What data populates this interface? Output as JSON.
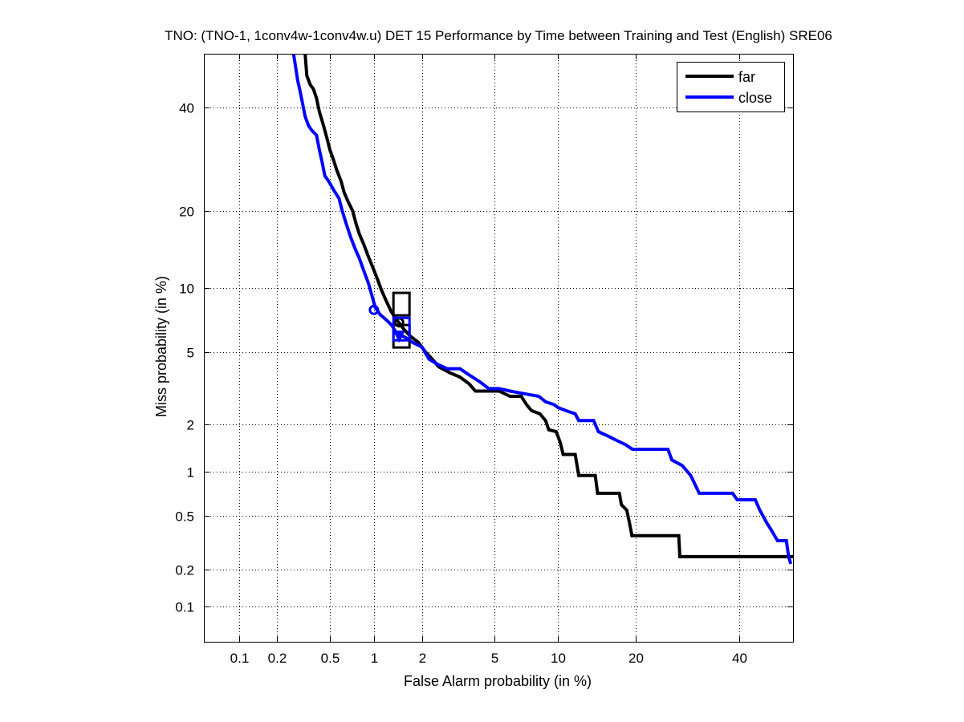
{
  "chart_data": {
    "type": "line",
    "title": "TNO: (TNO-1, 1conv4w-1conv4w.u) DET 15 Performance by Time between Training and Test (English) SRE06",
    "xlabel": "False Alarm probability (in %)",
    "ylabel": "Miss probability (in %)",
    "xscale": "probit",
    "yscale": "probit",
    "xlim": [
      0.05,
      52
    ],
    "ylim": [
      0.05,
      52
    ],
    "grid": true,
    "legend_position": "top-right",
    "x_ticks": [
      0.1,
      0.2,
      0.5,
      1,
      2,
      5,
      10,
      20,
      40
    ],
    "x_tick_labels": [
      "0.1",
      "0.2",
      "0.5",
      "1",
      "2",
      "5",
      "10",
      "20",
      "40"
    ],
    "y_ticks": [
      0.1,
      0.2,
      0.5,
      1,
      2,
      5,
      10,
      20,
      40
    ],
    "y_tick_labels": [
      "0.1",
      "0.2",
      "0.5",
      "1",
      "2",
      "5",
      "10",
      "20",
      "40"
    ],
    "series": [
      {
        "name": "far",
        "color": "#000000",
        "points": [
          [
            0.33,
            52
          ],
          [
            0.34,
            47
          ],
          [
            0.36,
            45
          ],
          [
            0.38,
            44
          ],
          [
            0.4,
            42
          ],
          [
            0.42,
            39
          ],
          [
            0.45,
            36
          ],
          [
            0.48,
            33
          ],
          [
            0.5,
            31
          ],
          [
            0.53,
            29
          ],
          [
            0.56,
            27
          ],
          [
            0.6,
            25
          ],
          [
            0.63,
            23
          ],
          [
            0.67,
            21.5
          ],
          [
            0.72,
            20
          ],
          [
            0.76,
            18
          ],
          [
            0.8,
            16.5
          ],
          [
            0.86,
            15
          ],
          [
            0.92,
            13.5
          ],
          [
            0.98,
            12.3
          ],
          [
            1.05,
            11
          ],
          [
            1.12,
            9.8
          ],
          [
            1.2,
            8.8
          ],
          [
            1.3,
            7.8
          ],
          [
            1.4,
            7.2
          ],
          [
            1.55,
            6.5
          ],
          [
            1.7,
            6.0
          ],
          [
            1.9,
            5.6
          ],
          [
            2.1,
            5.0
          ],
          [
            2.3,
            4.6
          ],
          [
            2.5,
            4.2
          ],
          [
            2.9,
            3.9
          ],
          [
            3.3,
            3.7
          ],
          [
            3.7,
            3.4
          ],
          [
            4.0,
            3.1
          ],
          [
            4.8,
            3.1
          ],
          [
            5.3,
            3.1
          ],
          [
            6.0,
            2.9
          ],
          [
            6.8,
            2.9
          ],
          [
            7.2,
            2.6
          ],
          [
            7.6,
            2.4
          ],
          [
            8.3,
            2.3
          ],
          [
            8.8,
            2.1
          ],
          [
            9.1,
            1.85
          ],
          [
            9.8,
            1.8
          ],
          [
            10.2,
            1.55
          ],
          [
            10.5,
            1.3
          ],
          [
            11.8,
            1.3
          ],
          [
            12.2,
            0.95
          ],
          [
            14.2,
            0.95
          ],
          [
            14.5,
            0.72
          ],
          [
            17.5,
            0.72
          ],
          [
            17.8,
            0.6
          ],
          [
            18.6,
            0.55
          ],
          [
            19.0,
            0.45
          ],
          [
            19.4,
            0.36
          ],
          [
            27.5,
            0.36
          ],
          [
            27.7,
            0.25
          ],
          [
            52,
            0.25
          ]
        ],
        "markers": [
          {
            "type": "circle",
            "fa": 1.45,
            "miss": 7.0
          },
          {
            "type": "square",
            "fa": 1.5,
            "miss": 8.5
          },
          {
            "type": "square",
            "fa": 1.5,
            "miss": 6.0
          }
        ]
      },
      {
        "name": "close",
        "color": "#0000ff",
        "points": [
          [
            0.27,
            52
          ],
          [
            0.28,
            49
          ],
          [
            0.29,
            46
          ],
          [
            0.3,
            44
          ],
          [
            0.31,
            42
          ],
          [
            0.32,
            40
          ],
          [
            0.33,
            38
          ],
          [
            0.35,
            36
          ],
          [
            0.37,
            35
          ],
          [
            0.4,
            34
          ],
          [
            0.42,
            31
          ],
          [
            0.44,
            28.5
          ],
          [
            0.46,
            26
          ],
          [
            0.49,
            25
          ],
          [
            0.53,
            23.5
          ],
          [
            0.58,
            22
          ],
          [
            0.61,
            20
          ],
          [
            0.65,
            18
          ],
          [
            0.7,
            16
          ],
          [
            0.75,
            14.5
          ],
          [
            0.8,
            13.3
          ],
          [
            0.85,
            12
          ],
          [
            0.92,
            10.5
          ],
          [
            0.97,
            9.3
          ],
          [
            1.02,
            8.2
          ],
          [
            1.1,
            7.6
          ],
          [
            1.2,
            7.2
          ],
          [
            1.3,
            6.8
          ],
          [
            1.4,
            6.2
          ],
          [
            1.6,
            5.9
          ],
          [
            1.75,
            5.6
          ],
          [
            2.0,
            5.3
          ],
          [
            2.2,
            4.6
          ],
          [
            2.5,
            4.3
          ],
          [
            2.8,
            4.1
          ],
          [
            3.3,
            4.1
          ],
          [
            3.7,
            3.8
          ],
          [
            4.2,
            3.5
          ],
          [
            4.7,
            3.2
          ],
          [
            5.3,
            3.2
          ],
          [
            6.0,
            3.1
          ],
          [
            7.0,
            3.0
          ],
          [
            8.2,
            2.9
          ],
          [
            8.8,
            2.7
          ],
          [
            9.6,
            2.6
          ],
          [
            10.0,
            2.5
          ],
          [
            10.8,
            2.4
          ],
          [
            11.8,
            2.3
          ],
          [
            12.2,
            2.1
          ],
          [
            14.0,
            2.1
          ],
          [
            14.6,
            1.8
          ],
          [
            15.8,
            1.7
          ],
          [
            17.0,
            1.6
          ],
          [
            18.4,
            1.5
          ],
          [
            19.5,
            1.4
          ],
          [
            25.5,
            1.4
          ],
          [
            26.2,
            1.2
          ],
          [
            28.2,
            1.1
          ],
          [
            29.8,
            0.95
          ],
          [
            30.5,
            0.85
          ],
          [
            31.5,
            0.72
          ],
          [
            38.5,
            0.72
          ],
          [
            39.5,
            0.65
          ],
          [
            43.5,
            0.65
          ],
          [
            44.5,
            0.55
          ],
          [
            46.0,
            0.45
          ],
          [
            47.0,
            0.4
          ],
          [
            48.5,
            0.33
          ],
          [
            50.5,
            0.33
          ],
          [
            51.0,
            0.25
          ],
          [
            51.5,
            0.22
          ]
        ],
        "markers": [
          {
            "type": "circle",
            "fa": 1.0,
            "miss": 8.0
          },
          {
            "type": "square",
            "fa": 1.5,
            "miss": 6.5
          },
          {
            "type": "triangle-down",
            "fa": 1.45,
            "miss": 6.0
          }
        ]
      }
    ]
  }
}
